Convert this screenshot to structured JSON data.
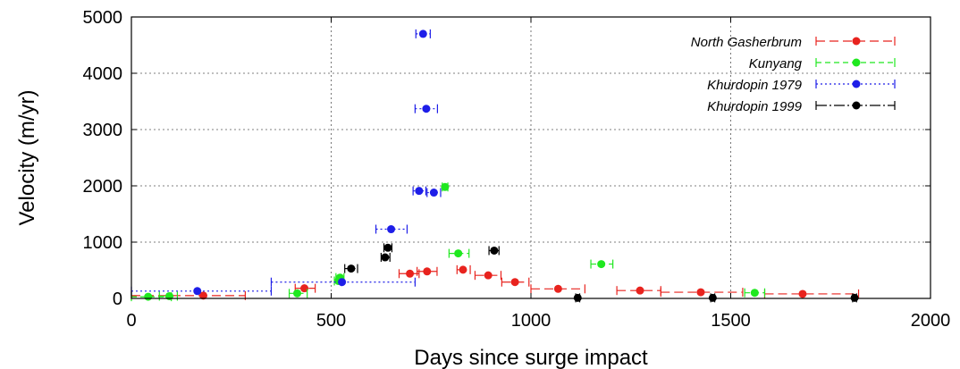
{
  "chart_data": {
    "type": "scatter",
    "xlabel": "Days since surge impact",
    "ylabel": "Velocity (m/yr)",
    "xlim": [
      0,
      2000
    ],
    "ylim": [
      0,
      5000
    ],
    "xticks": [
      0,
      500,
      1000,
      1500,
      2000
    ],
    "yticks": [
      0,
      1000,
      2000,
      3000,
      4000,
      5000
    ],
    "grid": "vertical dotted at x ticks, horizontal dotted at y ticks",
    "legend_position": "top-right",
    "series": [
      {
        "name": "North Gasherbrum",
        "color": "#e8231e",
        "dash": "10,5",
        "points": [
          {
            "x": 180,
            "y": 50,
            "xmin": 0,
            "xmax": 285
          },
          {
            "x": 433,
            "y": 180,
            "xmin": 410,
            "xmax": 460
          },
          {
            "x": 697,
            "y": 440,
            "xmin": 670,
            "xmax": 720
          },
          {
            "x": 740,
            "y": 480,
            "xmin": 715,
            "xmax": 765
          },
          {
            "x": 830,
            "y": 510,
            "xmin": 815,
            "xmax": 848
          },
          {
            "x": 893,
            "y": 410,
            "xmin": 860,
            "xmax": 925
          },
          {
            "x": 960,
            "y": 290,
            "xmin": 927,
            "xmax": 995
          },
          {
            "x": 1068,
            "y": 170,
            "xmin": 1000,
            "xmax": 1135
          },
          {
            "x": 1273,
            "y": 140,
            "xmin": 1215,
            "xmax": 1325
          },
          {
            "x": 1425,
            "y": 110,
            "xmin": 1325,
            "xmax": 1530
          },
          {
            "x": 1680,
            "y": 80,
            "xmin": 1585,
            "xmax": 1820
          }
        ]
      },
      {
        "name": "Kunyang",
        "color": "#1fe81f",
        "dash": "6,4",
        "points": [
          {
            "x": 42,
            "y": 30,
            "xmin": 0,
            "xmax": 100
          },
          {
            "x": 95,
            "y": 40,
            "xmin": 70,
            "xmax": 115
          },
          {
            "x": 415,
            "y": 90,
            "xmin": 395,
            "xmax": 440
          },
          {
            "x": 518,
            "y": 310,
            "xmin": 508,
            "xmax": 528
          },
          {
            "x": 522,
            "y": 370,
            "xmin": 512,
            "xmax": 532
          },
          {
            "x": 785,
            "y": 1980,
            "xmin": 778,
            "xmax": 792
          },
          {
            "x": 818,
            "y": 800,
            "xmin": 795,
            "xmax": 845
          },
          {
            "x": 1176,
            "y": 610,
            "xmin": 1150,
            "xmax": 1205
          },
          {
            "x": 1560,
            "y": 100,
            "xmin": 1535,
            "xmax": 1585
          }
        ]
      },
      {
        "name": "Khurdopin 1979",
        "color": "#1e1ee8",
        "dash": "2,3",
        "points": [
          {
            "x": 165,
            "y": 130,
            "xmin": 0,
            "xmax": 350
          },
          {
            "x": 527,
            "y": 290,
            "xmin": 350,
            "xmax": 710
          },
          {
            "x": 650,
            "y": 1230,
            "xmin": 612,
            "xmax": 690
          },
          {
            "x": 720,
            "y": 1910,
            "xmin": 705,
            "xmax": 737
          },
          {
            "x": 730,
            "y": 4700,
            "xmin": 712,
            "xmax": 748
          },
          {
            "x": 738,
            "y": 3370,
            "xmin": 710,
            "xmax": 766
          },
          {
            "x": 757,
            "y": 1880,
            "xmin": 740,
            "xmax": 774
          }
        ]
      },
      {
        "name": "Khurdopin 1999",
        "color": "#000000",
        "dash": "12,3,2,3",
        "points": [
          {
            "x": 550,
            "y": 530,
            "xmin": 534,
            "xmax": 566
          },
          {
            "x": 635,
            "y": 730,
            "xmin": 625,
            "xmax": 647
          },
          {
            "x": 642,
            "y": 900,
            "xmin": 632,
            "xmax": 652
          },
          {
            "x": 908,
            "y": 850,
            "xmin": 895,
            "xmax": 920
          },
          {
            "x": 1117,
            "y": 10,
            "xmin": 1112,
            "xmax": 1122
          },
          {
            "x": 1455,
            "y": 10,
            "xmin": 1450,
            "xmax": 1460
          },
          {
            "x": 1810,
            "y": 10,
            "xmin": 1805,
            "xmax": 1815
          }
        ]
      }
    ]
  }
}
